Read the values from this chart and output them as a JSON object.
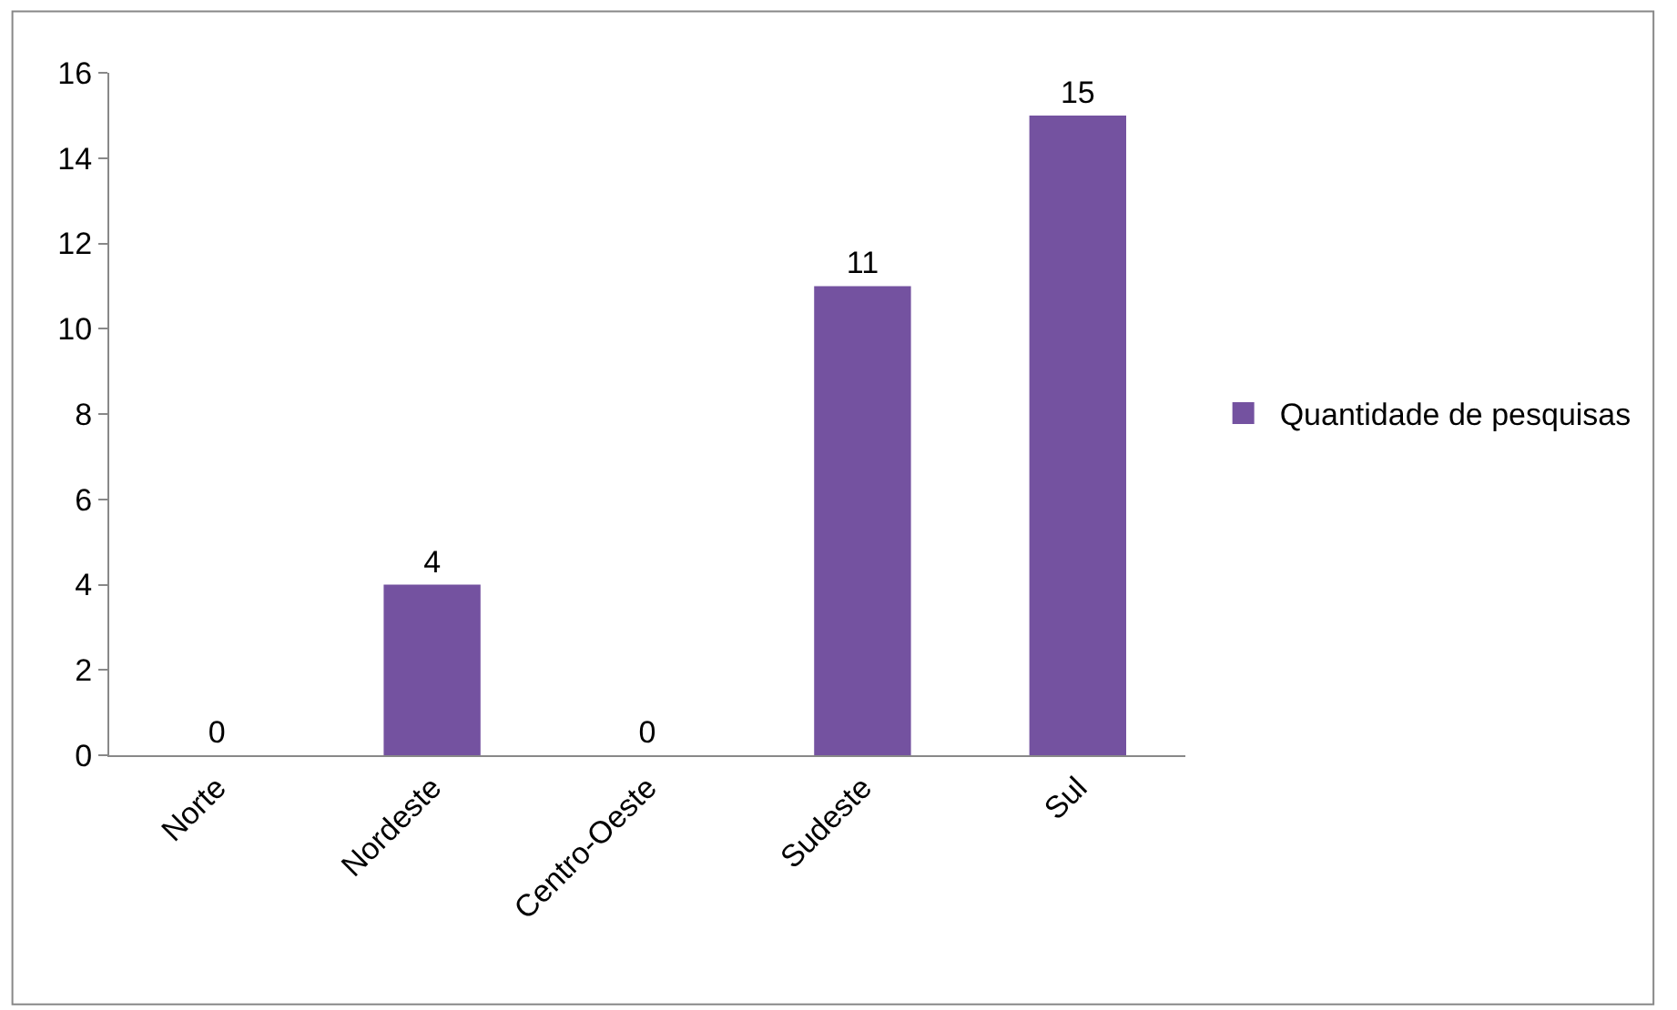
{
  "chart_data": {
    "type": "bar",
    "categories": [
      "Norte",
      "Nordeste",
      "Centro-Oeste",
      "Sudeste",
      "Sul"
    ],
    "series": [
      {
        "name": "Quantidade de pesquisas",
        "color": "#7452a0",
        "values": [
          0,
          4,
          0,
          11,
          15
        ]
      }
    ],
    "ylim": [
      0,
      16
    ],
    "yticks": [
      0,
      2,
      4,
      6,
      8,
      10,
      12,
      14,
      16
    ],
    "data_labels": true,
    "legend": "right",
    "grid": false
  }
}
